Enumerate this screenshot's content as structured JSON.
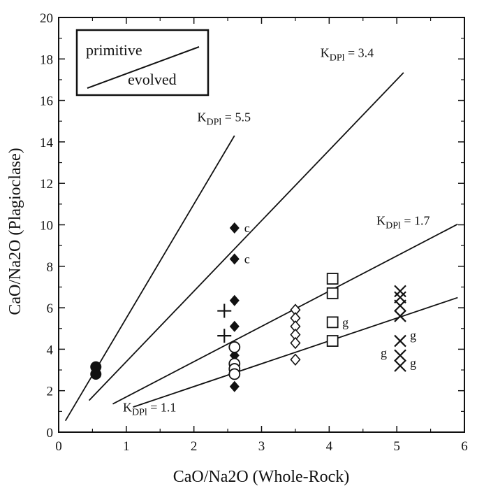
{
  "chart_data": {
    "type": "scatter",
    "xlabel": "CaO/Na2O (Whole-Rock)",
    "ylabel": "CaO/Na2O (Plagioclase)",
    "xlim": [
      0,
      6
    ],
    "ylim": [
      0,
      20
    ],
    "x_ticks": [
      "0",
      "1",
      "2",
      "3",
      "4",
      "5",
      "6"
    ],
    "y_ticks": [
      "0",
      "2",
      "4",
      "6",
      "8",
      "10",
      "12",
      "14",
      "16",
      "18",
      "20"
    ],
    "legend": {
      "top": "primitive",
      "bottom": "evolved",
      "placement": "top-left"
    },
    "grid": false,
    "reference_lines": [
      {
        "label_main": "K",
        "label_sub": "DPl",
        "label_value": "= 5.5",
        "slope": 5.5,
        "x": [
          0.1,
          2.6
        ]
      },
      {
        "label_main": "K",
        "label_sub": "DPl",
        "label_value": "= 3.4",
        "slope": 3.4,
        "x": [
          0.45,
          5.1
        ]
      },
      {
        "label_main": "K",
        "label_sub": "DPl",
        "label_value": "= 1.7",
        "slope": 1.7,
        "x": [
          0.8,
          5.9
        ]
      },
      {
        "label_main": "K",
        "label_sub": "DPl",
        "label_value": "= 1.1",
        "slope": 1.1,
        "x": [
          1.1,
          5.9
        ]
      }
    ],
    "series": [
      {
        "marker": "filled-circle",
        "points": [
          [
            0.55,
            3.15
          ],
          [
            0.55,
            2.8
          ]
        ]
      },
      {
        "marker": "filled-diamond",
        "points": [
          [
            2.6,
            9.85
          ],
          [
            2.6,
            8.35
          ],
          [
            2.6,
            6.35
          ],
          [
            2.6,
            5.1
          ],
          [
            2.6,
            3.7
          ],
          [
            2.6,
            2.2
          ]
        ],
        "flags": [
          "c",
          "c",
          "",
          "",
          "",
          ""
        ]
      },
      {
        "marker": "plus",
        "points": [
          [
            2.45,
            5.85
          ],
          [
            2.45,
            4.65
          ]
        ]
      },
      {
        "marker": "open-circle",
        "points": [
          [
            2.6,
            4.1
          ],
          [
            2.6,
            3.3
          ],
          [
            2.6,
            3.05
          ],
          [
            2.6,
            2.8
          ]
        ]
      },
      {
        "marker": "open-diamond",
        "points": [
          [
            3.5,
            5.9
          ],
          [
            3.5,
            5.5
          ],
          [
            3.5,
            5.1
          ],
          [
            3.5,
            4.7
          ],
          [
            3.5,
            4.3
          ],
          [
            3.5,
            3.5
          ]
        ]
      },
      {
        "marker": "open-square",
        "points": [
          [
            4.05,
            7.4
          ],
          [
            4.05,
            6.7
          ],
          [
            4.05,
            5.3
          ],
          [
            4.05,
            4.4
          ]
        ],
        "flags": [
          "",
          "",
          "g",
          ""
        ]
      },
      {
        "marker": "x-mark",
        "points": [
          [
            5.05,
            6.8
          ],
          [
            5.05,
            6.5
          ],
          [
            5.05,
            6.1
          ],
          [
            5.05,
            5.6
          ],
          [
            5.05,
            4.4
          ],
          [
            5.05,
            3.7
          ],
          [
            5.05,
            3.2
          ]
        ],
        "flags": [
          "",
          "",
          "",
          "",
          "g",
          "g",
          "g"
        ]
      }
    ]
  }
}
